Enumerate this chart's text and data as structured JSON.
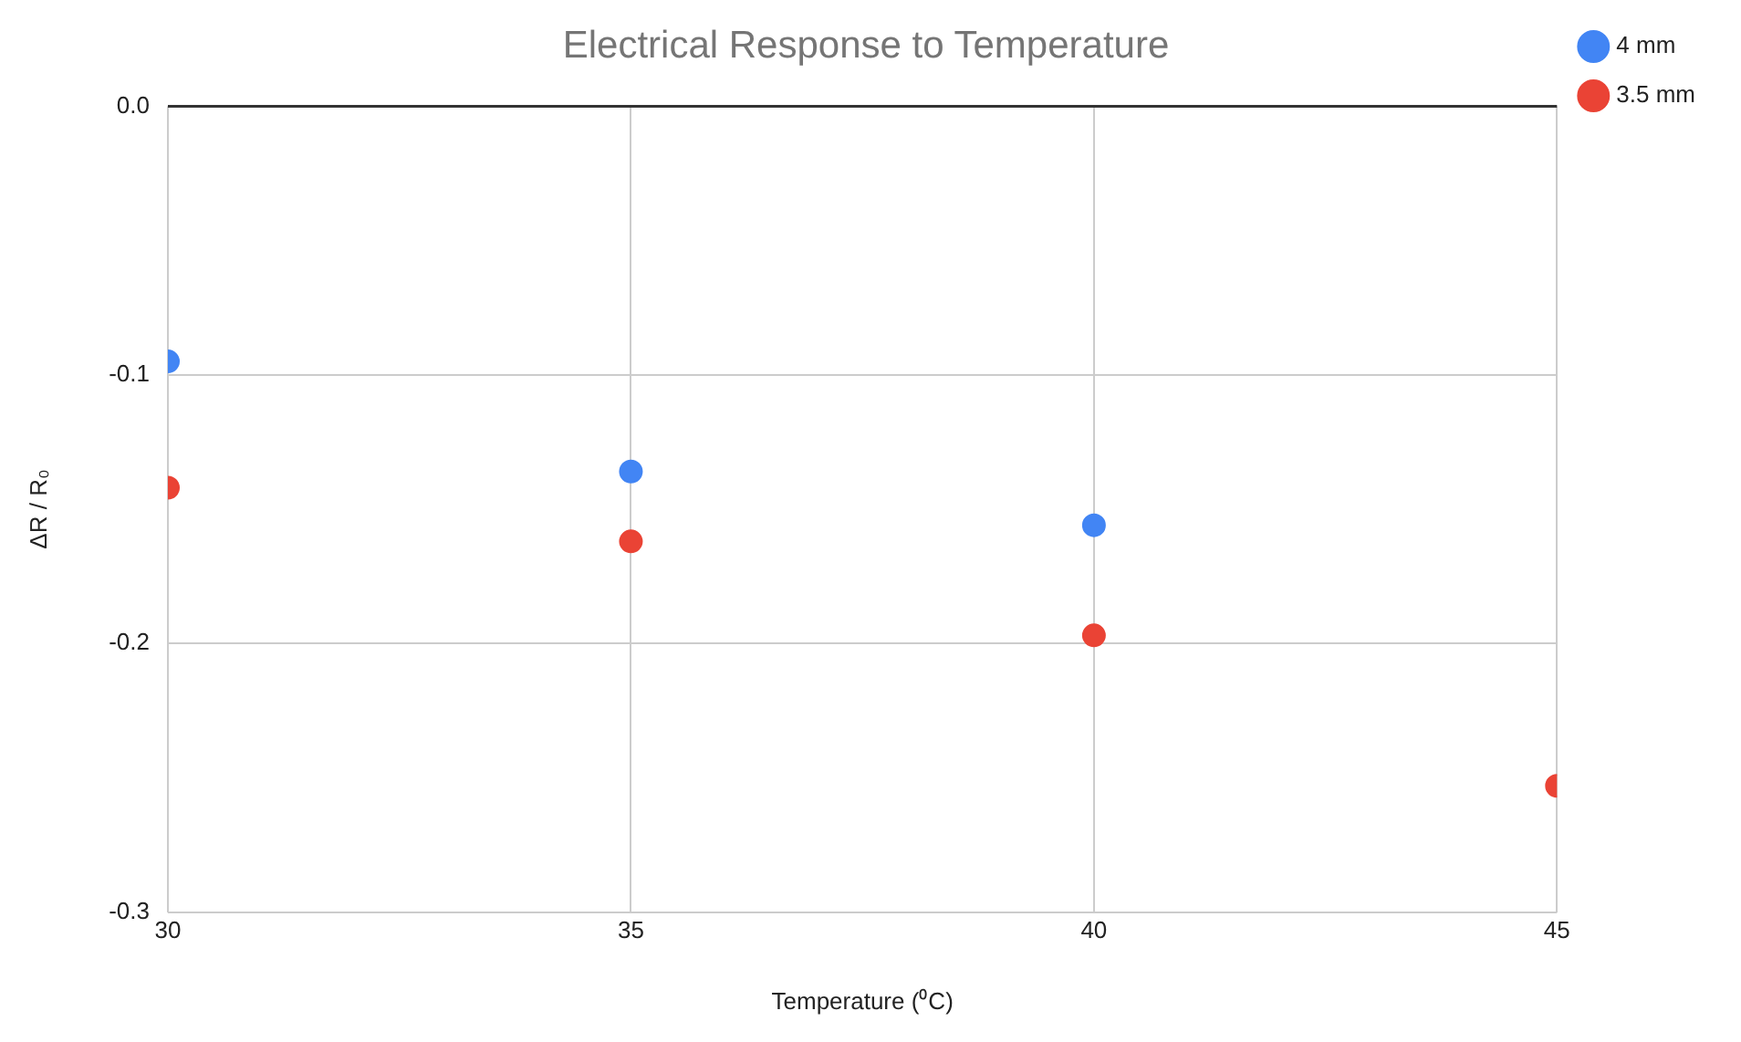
{
  "chart_data": {
    "type": "scatter",
    "title": "Electrical Response to Temperature",
    "xlabel": "Temperature (⁰C)",
    "ylabel": "ΔR / R₀",
    "series": [
      {
        "name": "4 mm",
        "color": "#4285f4",
        "x": [
          30,
          35,
          40
        ],
        "values": [
          -0.095,
          -0.136,
          -0.156
        ]
      },
      {
        "name": "3.5 mm",
        "color": "#ea4335",
        "x": [
          30,
          35,
          40,
          45
        ],
        "values": [
          -0.142,
          -0.162,
          -0.197,
          -0.253
        ]
      }
    ],
    "xlim": [
      30,
      45
    ],
    "xticks": [
      30,
      35,
      40,
      45
    ],
    "ylim": [
      -0.3,
      0
    ],
    "yticks": [
      {
        "value": -0.3,
        "label": "-0.3"
      },
      {
        "value": -0.2,
        "label": "-0.2"
      },
      {
        "value": -0.1,
        "label": "-0.1"
      },
      {
        "value": 0,
        "label": "0.0"
      }
    ],
    "grid": true,
    "legend": "right",
    "marker": "circle"
  }
}
